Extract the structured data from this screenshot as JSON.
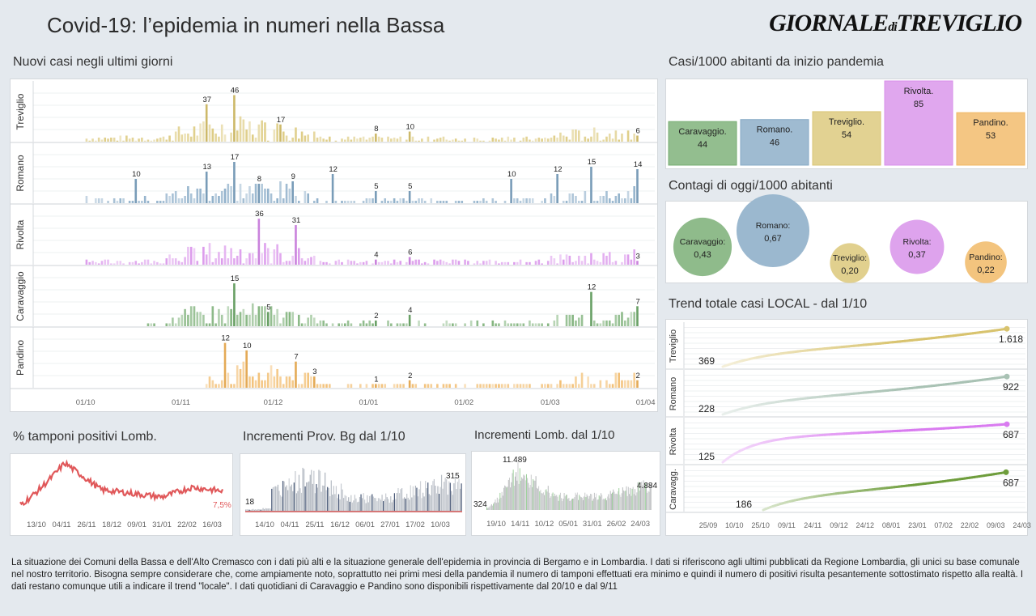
{
  "header": {
    "title": "Covid-19: l’epidemia  in numeri nella Bassa",
    "logo_main": "GIORNALE",
    "logo_di": "di",
    "logo_end": "TREVIGLIO"
  },
  "sections": {
    "new_cases": "Nuovi casi negli ultimi   giorni",
    "per1000": "Casi/1000 abitanti da inizio pandemia",
    "today": "Contagi di oggi/1000 abitanti",
    "trend": "Trend totale casi  LOCAL - dal 1/10",
    "positives": "% tamponi positivi Lomb.",
    "bg": "Incrementi Prov. Bg dal 1/10",
    "lomb": "Incrementi Lomb. dal 1/10"
  },
  "colors": {
    "Treviglio": "#d8c36e",
    "Romano": "#7fa4c2",
    "Rivolta": "#d589e8",
    "Caravaggio": "#6fa86a",
    "Pandino": "#f0b35a",
    "red_line": "#e0585a",
    "bg_bars": "#b8bcc2"
  },
  "chart_data": [
    {
      "type": "bar",
      "title": "Nuovi casi negli ultimi   giorni",
      "x_ticks": [
        "01/10",
        "01/11",
        "01/12",
        "01/01",
        "01/02",
        "01/03",
        "01/04"
      ],
      "series": [
        {
          "name": "Treviglio",
          "labels": [
            {
              "date": "2020-11-09",
              "value": 37
            },
            {
              "date": "2020-11-18",
              "value": 46
            },
            {
              "date": "2020-12-03",
              "value": 17
            },
            {
              "date": "2021-01-03",
              "value": 8
            },
            {
              "date": "2021-01-14",
              "value": 10
            },
            {
              "date": "2021-03-29",
              "value": 6
            }
          ]
        },
        {
          "name": "Romano",
          "labels": [
            {
              "date": "2020-10-17",
              "value": 10
            },
            {
              "date": "2020-11-09",
              "value": 13
            },
            {
              "date": "2020-11-18",
              "value": 17
            },
            {
              "date": "2020-11-26",
              "value": 8
            },
            {
              "date": "2020-12-07",
              "value": 9
            },
            {
              "date": "2020-12-20",
              "value": 12
            },
            {
              "date": "2021-01-03",
              "value": 5
            },
            {
              "date": "2021-01-14",
              "value": 5
            },
            {
              "date": "2021-02-16",
              "value": 10
            },
            {
              "date": "2021-03-03",
              "value": 12
            },
            {
              "date": "2021-03-14",
              "value": 15
            },
            {
              "date": "2021-03-29",
              "value": 14
            }
          ]
        },
        {
          "name": "Rivolta",
          "labels": [
            {
              "date": "2020-11-26",
              "value": 36
            },
            {
              "date": "2020-12-08",
              "value": 31
            },
            {
              "date": "2021-01-03",
              "value": 4
            },
            {
              "date": "2021-01-14",
              "value": 6
            },
            {
              "date": "2021-03-29",
              "value": 3
            }
          ]
        },
        {
          "name": "Caravaggio",
          "labels": [
            {
              "date": "2020-11-18",
              "value": 15
            },
            {
              "date": "2020-11-29",
              "value": 5
            },
            {
              "date": "2021-01-03",
              "value": 2
            },
            {
              "date": "2021-01-14",
              "value": 4
            },
            {
              "date": "2021-03-14",
              "value": 12
            },
            {
              "date": "2021-03-29",
              "value": 7
            }
          ]
        },
        {
          "name": "Pandino",
          "labels": [
            {
              "date": "2020-11-15",
              "value": 12
            },
            {
              "date": "2020-11-22",
              "value": 10
            },
            {
              "date": "2020-12-08",
              "value": 7
            },
            {
              "date": "2020-12-14",
              "value": 3
            },
            {
              "date": "2021-01-03",
              "value": 1
            },
            {
              "date": "2021-01-14",
              "value": 2
            },
            {
              "date": "2021-03-29",
              "value": 2
            }
          ]
        }
      ]
    },
    {
      "type": "bar",
      "title": "Casi/1000 abitanti da inizio pandemia",
      "categories": [
        "Caravaggio.",
        "Romano.",
        "Treviglio.",
        "Rivolta.",
        "Pandino."
      ],
      "values": [
        44,
        46,
        54,
        85,
        53
      ]
    },
    {
      "type": "scatter",
      "title": "Contagi di oggi/1000 abitanti",
      "categories": [
        "Caravaggio:",
        "Romano:",
        "Treviglio:",
        "Rivolta:",
        "Pandino:"
      ],
      "values": [
        "0,43",
        "0,67",
        "0,20",
        "0,37",
        "0,22"
      ],
      "numeric": [
        0.43,
        0.67,
        0.2,
        0.37,
        0.22
      ]
    },
    {
      "type": "line",
      "title": "Trend totale casi  LOCAL - dal 1/10",
      "x_ticks": [
        "25/09",
        "10/10",
        "25/10",
        "09/11",
        "24/11",
        "09/12",
        "24/12",
        "08/01",
        "23/01",
        "07/02",
        "22/02",
        "09/03",
        "24/03"
      ],
      "series": [
        {
          "name": "Treviglio",
          "start": "369",
          "end": "1.618"
        },
        {
          "name": "Romano",
          "start": "228",
          "end": "922"
        },
        {
          "name": "Rivolta",
          "start": "125",
          "end": "687"
        },
        {
          "name": "Caravagg.",
          "start": "186",
          "end": "687"
        }
      ]
    },
    {
      "type": "line",
      "title": "% tamponi positivi Lomb.",
      "x_ticks": [
        "13/10",
        "04/11",
        "26/11",
        "18/12",
        "09/01",
        "31/01",
        "22/02",
        "16/03"
      ],
      "end_label": "7,5%"
    },
    {
      "type": "bar",
      "title": "Incrementi Prov. Bg dal 1/10",
      "x_ticks": [
        "14/10",
        "04/11",
        "25/11",
        "16/12",
        "06/01",
        "27/01",
        "17/02",
        "10/03"
      ],
      "start_label": "18",
      "end_label": "315"
    },
    {
      "type": "bar",
      "title": "Incrementi Lomb. dal 1/10",
      "x_ticks": [
        "19/10",
        "14/11",
        "10/12",
        "05/01",
        "31/01",
        "26/02",
        "24/03"
      ],
      "start_label": "324",
      "peak_label": "11.489",
      "end_label": "4.884"
    }
  ],
  "footer": "La situazione dei Comuni della Bassa e dell'Alto Cremasco con i dati più alti e la situazione generale dell'epidemia in provincia di Bergamo e in Lombardia.  I dati si riferiscono agli ultimi pubblicati da Regione Lombardia, gli unici su base comunale nel  nostro territorio.  Bisogna sempre considerare che, come ampiamente noto, soprattutto nei primi mesi della pandemia il numero di tamponi effettuati era minimo e quindi il numero di positivi risulta pesantemente sottostimato rispetto alla realtà. I dati restano comunque utili a indicare il trend \"locale\".  I dati quotidiani di Caravaggio e Pandino sono disponibili rispettivamente dal 20/10 e dal 9/11"
}
